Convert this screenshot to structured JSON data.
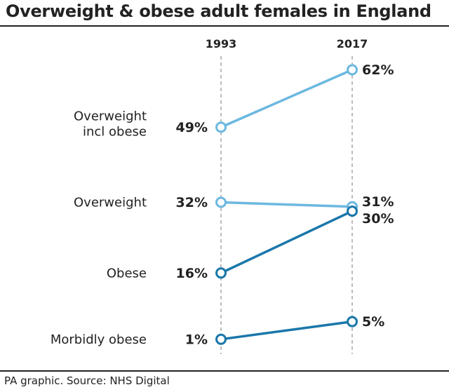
{
  "title": "Overweight & obese adult females in England",
  "source": "PA graphic. Source: NHS Digital",
  "colors": {
    "light": "#6cb8e0",
    "dark": "#1a77aa",
    "axis": "#999999",
    "text": "#222222"
  },
  "chart_data": {
    "type": "line",
    "title": "Overweight & obese adult females in England",
    "x": [
      "1993",
      "2017"
    ],
    "unit": "%",
    "series": [
      {
        "name": "Overweight\nincl obese",
        "values": [
          49,
          62
        ],
        "color": "light"
      },
      {
        "name": "Overweight",
        "values": [
          32,
          31
        ],
        "color": "light"
      },
      {
        "name": "Obese",
        "values": [
          16,
          30
        ],
        "color": "dark"
      },
      {
        "name": "Morbidly obese",
        "values": [
          1,
          5
        ],
        "color": "dark"
      }
    ]
  }
}
